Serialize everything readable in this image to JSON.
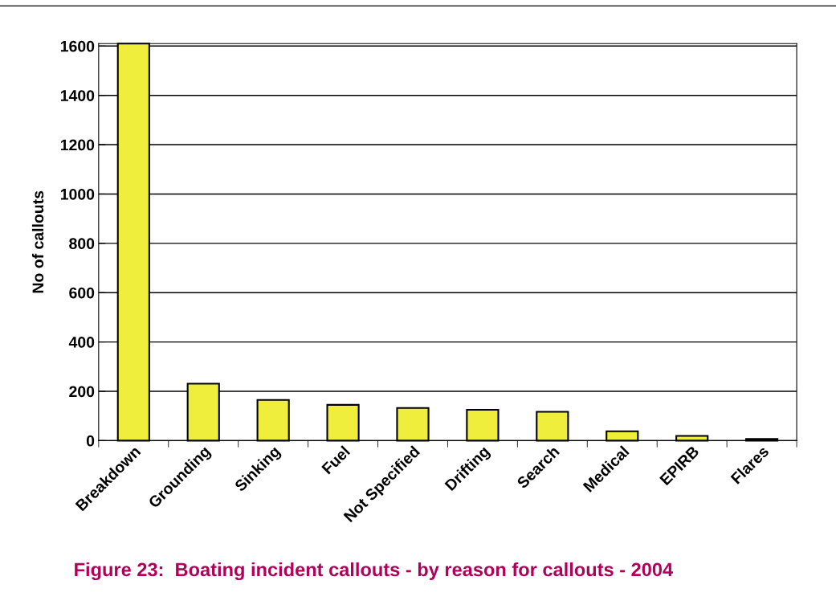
{
  "chart_data": {
    "type": "bar",
    "ylabel": "No of callouts",
    "annotations": [
      "Figure 23:  Boating incident callouts - by reason for callouts - 2004"
    ],
    "categories": [
      "Breakdown",
      "Grounding",
      "Sinking",
      "Fuel",
      "Not Specified",
      "Drifting",
      "Search",
      "Medical",
      "EPIRB",
      "Flares"
    ],
    "values": [
      1610,
      231,
      165,
      145,
      132,
      125,
      117,
      38,
      19,
      7
    ],
    "color": "#f0ee3c",
    "ylim": [
      0,
      1610
    ],
    "yticks": [
      0,
      200,
      400,
      600,
      800,
      1000,
      1200,
      1400,
      1600
    ],
    "grid": "y"
  }
}
